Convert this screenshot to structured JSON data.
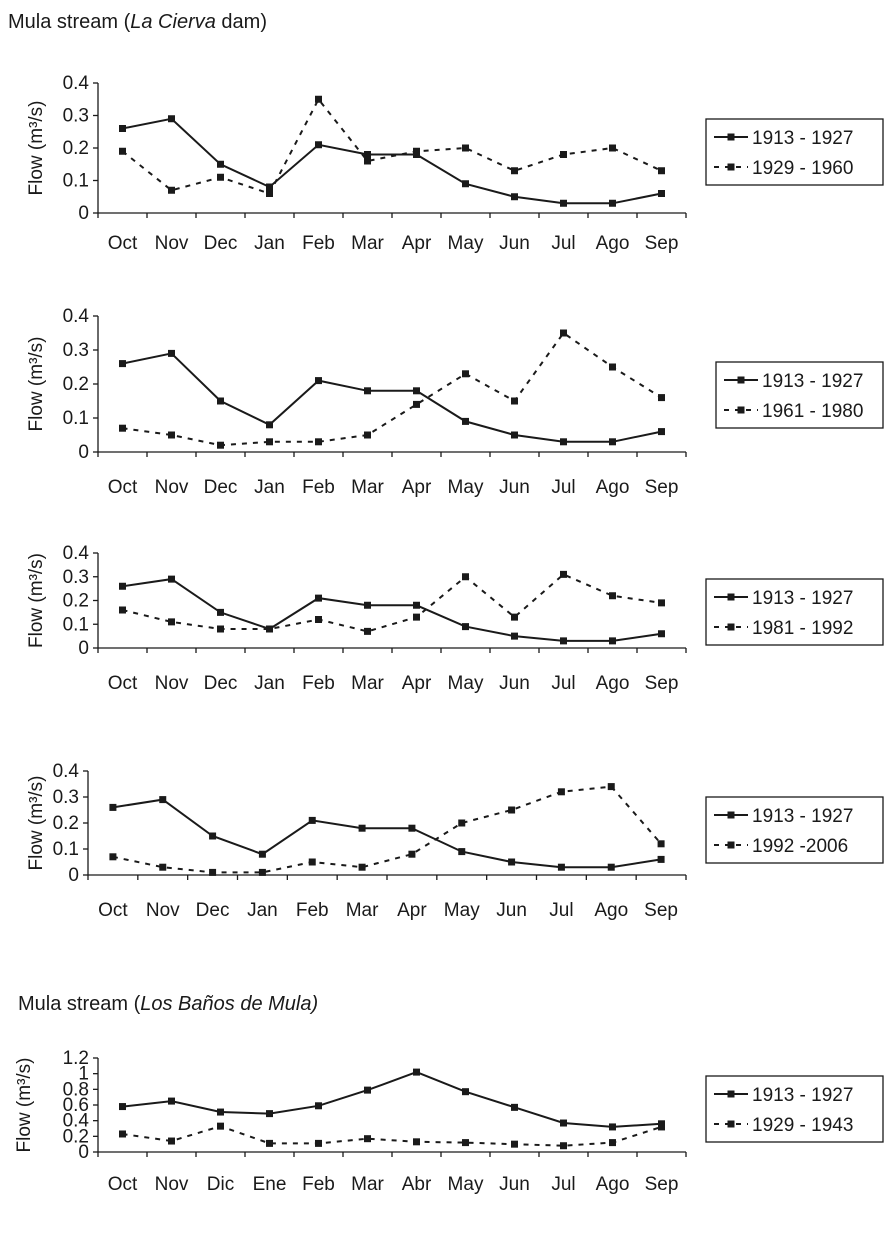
{
  "sections": [
    {
      "title": "Mula stream (",
      "title_italic": "La Cierva",
      "title_end": " dam)"
    },
    {
      "title": "Mula stream (",
      "title_italic": "Los Baños de Mula)",
      "title_end": ""
    }
  ],
  "chart_data": [
    {
      "type": "line",
      "categories": [
        "Oct",
        "Nov",
        "Dec",
        "Jan",
        "Feb",
        "Mar",
        "Apr",
        "May",
        "Jun",
        "Jul",
        "Ago",
        "Sep"
      ],
      "ylabel": "Flow (m³/s)",
      "ylim": [
        0,
        0.4
      ],
      "yticks": [
        "0",
        "0.1",
        "0.2",
        "0.3",
        "0.4"
      ],
      "legend": "right",
      "series": [
        {
          "name": "1913 - 1927",
          "style": "solid",
          "values": [
            0.26,
            0.29,
            0.15,
            0.08,
            0.21,
            0.18,
            0.18,
            0.09,
            0.05,
            0.03,
            0.03,
            0.06
          ]
        },
        {
          "name": "1929 - 1960",
          "style": "dashed",
          "values": [
            0.19,
            0.07,
            0.11,
            0.06,
            0.35,
            0.16,
            0.19,
            0.2,
            0.13,
            0.18,
            0.2,
            0.13
          ]
        }
      ]
    },
    {
      "type": "line",
      "categories": [
        "Oct",
        "Nov",
        "Dec",
        "Jan",
        "Feb",
        "Mar",
        "Apr",
        "May",
        "Jun",
        "Jul",
        "Ago",
        "Sep"
      ],
      "ylabel": "Flow (m³/s)",
      "ylim": [
        0,
        0.4
      ],
      "yticks": [
        "0",
        "0.1",
        "0.2",
        "0.3",
        "0.4"
      ],
      "legend": "right",
      "series": [
        {
          "name": "1913 - 1927",
          "style": "solid",
          "values": [
            0.26,
            0.29,
            0.15,
            0.08,
            0.21,
            0.18,
            0.18,
            0.09,
            0.05,
            0.03,
            0.03,
            0.06
          ]
        },
        {
          "name": "1961 - 1980",
          "style": "dashed",
          "values": [
            0.07,
            0.05,
            0.02,
            0.03,
            0.03,
            0.05,
            0.14,
            0.23,
            0.15,
            0.35,
            0.25,
            0.16
          ]
        }
      ]
    },
    {
      "type": "line",
      "categories": [
        "Oct",
        "Nov",
        "Dec",
        "Jan",
        "Feb",
        "Mar",
        "Apr",
        "May",
        "Jun",
        "Jul",
        "Ago",
        "Sep"
      ],
      "ylabel": "Flow (m³/s)",
      "ylim": [
        0,
        0.4
      ],
      "yticks": [
        "0",
        "0.1",
        "0.2",
        "0.3",
        "0.4"
      ],
      "legend": "right",
      "series": [
        {
          "name": "1913 - 1927",
          "style": "solid",
          "values": [
            0.26,
            0.29,
            0.15,
            0.08,
            0.21,
            0.18,
            0.18,
            0.09,
            0.05,
            0.03,
            0.03,
            0.06
          ]
        },
        {
          "name": "1981 - 1992",
          "style": "dashed",
          "values": [
            0.16,
            0.11,
            0.08,
            0.08,
            0.12,
            0.07,
            0.13,
            0.3,
            0.13,
            0.31,
            0.22,
            0.19
          ]
        }
      ]
    },
    {
      "type": "line",
      "categories": [
        "Oct",
        "Nov",
        "Dec",
        "Jan",
        "Feb",
        "Mar",
        "Apr",
        "May",
        "Jun",
        "Jul",
        "Ago",
        "Sep"
      ],
      "ylabel": "Flow (m³/s)",
      "ylim": [
        0,
        0.4
      ],
      "yticks": [
        "0",
        "0.1",
        "0.2",
        "0.3",
        "0.4"
      ],
      "legend": "right",
      "series": [
        {
          "name": "1913 - 1927",
          "style": "solid",
          "values": [
            0.26,
            0.29,
            0.15,
            0.08,
            0.21,
            0.18,
            0.18,
            0.09,
            0.05,
            0.03,
            0.03,
            0.06
          ]
        },
        {
          "name": "1992 -2006",
          "style": "dashed",
          "values": [
            0.07,
            0.03,
            0.01,
            0.01,
            0.05,
            0.03,
            0.08,
            0.2,
            0.25,
            0.32,
            0.34,
            0.12
          ]
        }
      ]
    },
    {
      "type": "line",
      "categories": [
        "Oct",
        "Nov",
        "Dic",
        "Ene",
        "Feb",
        "Mar",
        "Abr",
        "May",
        "Jun",
        "Jul",
        "Ago",
        "Sep"
      ],
      "ylabel": "Flow (m³/s)",
      "ylim": [
        0,
        1.2
      ],
      "yticks": [
        "0",
        "0.2",
        "0.4",
        "0.6",
        "0.8",
        "1",
        "1.2"
      ],
      "legend": "right",
      "series": [
        {
          "name": "1913 - 1927",
          "style": "solid",
          "values": [
            0.58,
            0.65,
            0.51,
            0.49,
            0.59,
            0.79,
            1.02,
            0.77,
            0.57,
            0.37,
            0.32,
            0.36
          ]
        },
        {
          "name": "1929 - 1943",
          "style": "dashed",
          "values": [
            0.23,
            0.14,
            0.33,
            0.11,
            0.11,
            0.17,
            0.13,
            0.12,
            0.1,
            0.08,
            0.12,
            0.32
          ]
        }
      ]
    }
  ]
}
